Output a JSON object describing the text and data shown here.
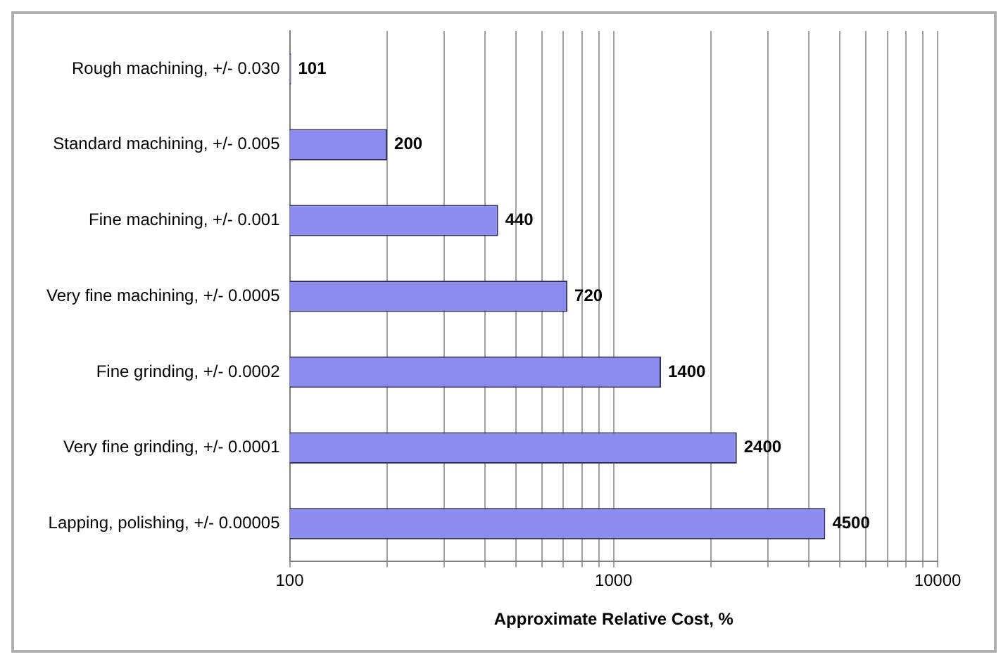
{
  "chart_data": {
    "type": "bar",
    "orientation": "horizontal",
    "xlabel": "Approximate Relative Cost, %",
    "categories": [
      "Rough machining, +/- 0.030",
      "Standard machining, +/- 0.005",
      "Fine machining, +/- 0.001",
      "Very fine machining, +/- 0.0005",
      "Fine grinding, +/- 0.0002",
      "Very fine grinding, +/- 0.0001",
      "Lapping, polishing, +/- 0.00005"
    ],
    "values": [
      101,
      200,
      440,
      720,
      1400,
      2400,
      4500
    ],
    "color": "#8c8cf0",
    "log": "x",
    "xlim": [
      100,
      10000
    ],
    "xticks": [
      100,
      {
        "value": 200,
        "label": null
      },
      {
        "value": 300,
        "label": null
      },
      {
        "value": 400,
        "label": null
      },
      {
        "value": 500,
        "label": null
      },
      {
        "value": 600,
        "label": null
      },
      {
        "value": 700,
        "label": null
      },
      {
        "value": 800,
        "label": null
      },
      {
        "value": 900,
        "label": null
      },
      1000,
      {
        "value": 2000,
        "label": null
      },
      {
        "value": 3000,
        "label": null
      },
      {
        "value": 4000,
        "label": null
      },
      {
        "value": 5000,
        "label": null
      },
      {
        "value": 6000,
        "label": null
      },
      {
        "value": 7000,
        "label": null
      },
      {
        "value": 8000,
        "label": null
      },
      {
        "value": 9000,
        "label": null
      },
      10000
    ],
    "grid": "x",
    "data_labels": true
  }
}
